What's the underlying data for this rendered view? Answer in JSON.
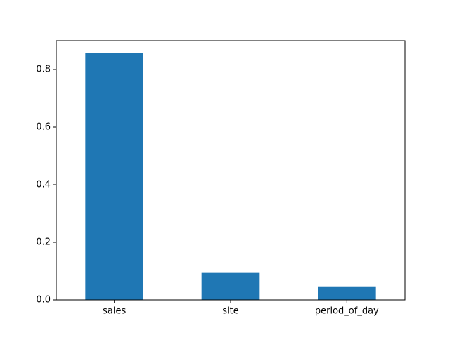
{
  "chart_data": {
    "type": "bar",
    "title": "",
    "xlabel": "",
    "ylabel": "",
    "categories": [
      "sales",
      "site",
      "period_of_day"
    ],
    "values": [
      0.857,
      0.096,
      0.047
    ],
    "ylim": [
      0,
      0.9
    ],
    "yticks": [
      0.0,
      0.2,
      0.4,
      0.6,
      0.8
    ],
    "ytick_labels": [
      "0.0",
      "0.2",
      "0.4",
      "0.6",
      "0.8"
    ],
    "grid": false,
    "legend": "none",
    "bar_color": "#1f77b4"
  }
}
